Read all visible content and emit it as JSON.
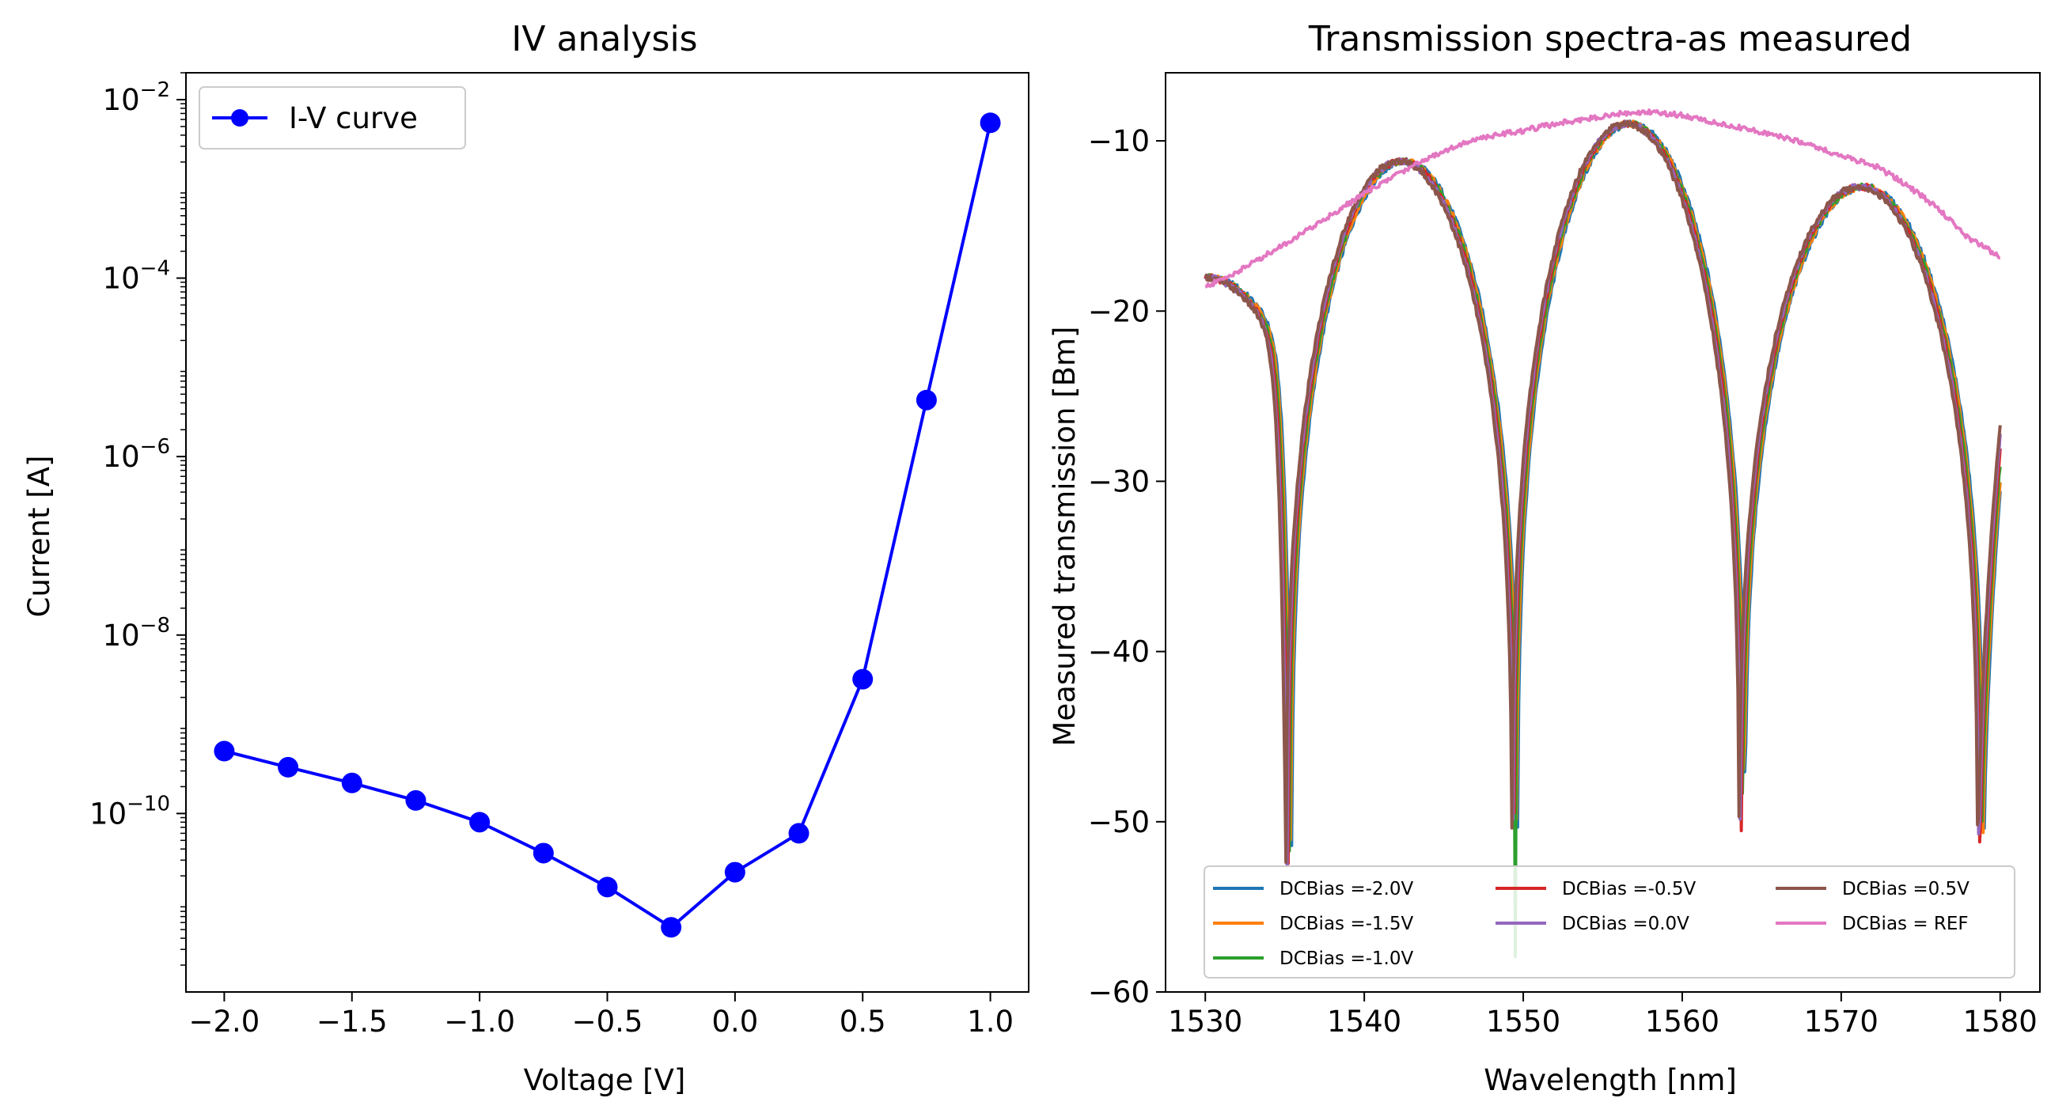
{
  "chart_data": [
    {
      "type": "line",
      "title": "IV analysis",
      "xlabel": "Voltage [V]",
      "ylabel": "Current [A]",
      "xlim": [
        -2.15,
        1.15
      ],
      "ylim": [
        1e-12,
        0.02
      ],
      "yscale": "log",
      "xticks": [
        -2.0,
        -1.5,
        -1.0,
        -0.5,
        0.0,
        0.5,
        1.0
      ],
      "xtick_labels": [
        "−2.0",
        "−1.5",
        "−1.0",
        "−0.5",
        "0.0",
        "0.5",
        "1.0"
      ],
      "yticks": [
        {
          "base": "10",
          "exp": "−10",
          "value": 1e-10
        },
        {
          "base": "10",
          "exp": "−8",
          "value": 1e-08
        },
        {
          "base": "10",
          "exp": "−6",
          "value": 1e-06
        },
        {
          "base": "10",
          "exp": "−4",
          "value": 0.0001
        },
        {
          "base": "10",
          "exp": "−2",
          "value": 0.01
        }
      ],
      "legend_location": "upper-left",
      "series": [
        {
          "name": "I-V curve",
          "color": "#0000ff",
          "marker": "circle",
          "x": [
            -2.0,
            -1.75,
            -1.5,
            -1.25,
            -1.0,
            -0.75,
            -0.5,
            -0.25,
            0.0,
            0.25,
            0.5,
            0.75,
            1.0
          ],
          "y": [
            5e-10,
            3.3e-10,
            2.2e-10,
            1.4e-10,
            8e-11,
            3.6e-11,
            1.5e-11,
            5.3e-12,
            2.2e-11,
            6e-11,
            3.2e-09,
            4.3e-06,
            0.0055
          ]
        }
      ]
    },
    {
      "type": "line",
      "title": "Transmission spectra-as measured",
      "xlabel": "Wavelength [nm]",
      "ylabel": "Measured transmission [Bm]",
      "xlim": [
        1527.5,
        1582.5
      ],
      "ylim": [
        -60,
        -6
      ],
      "xticks": [
        1530,
        1540,
        1550,
        1560,
        1570,
        1580
      ],
      "xtick_labels": [
        "1530",
        "1540",
        "1550",
        "1560",
        "1570",
        "1580"
      ],
      "yticks": [
        -60,
        -50,
        -40,
        -30,
        -20,
        -10
      ],
      "ytick_labels": [
        "−60",
        "−50",
        "−40",
        "−30",
        "−20",
        "−10"
      ],
      "legend_location": "lower-center",
      "legend_columns": 3,
      "dips_nm": [
        1535.3,
        1549.5,
        1563.8,
        1578.8
      ],
      "series": [
        {
          "name": "DCBias =-2.0V",
          "color": "#1f77b4",
          "shift_nm": 0.15,
          "x": [
            1530,
            1533,
            1535.3,
            1538,
            1543,
            1549.5,
            1553,
            1557,
            1560,
            1563.8,
            1566,
            1570,
            1574,
            1578.8,
            1580
          ],
          "y": [
            -18,
            -22,
            -50,
            -18,
            -11.2,
            -46,
            -15,
            -9,
            -14,
            -45,
            -16,
            -12.8,
            -17,
            -57,
            -31
          ]
        },
        {
          "name": "DCBias =-1.5V",
          "color": "#ff7f0e",
          "shift_nm": 0.08,
          "x": [
            1530,
            1533,
            1535.3,
            1538,
            1543,
            1549.5,
            1553,
            1557,
            1560,
            1563.8,
            1566,
            1570,
            1574,
            1578.8,
            1580
          ],
          "y": [
            -18,
            -22,
            -50,
            -18,
            -11.2,
            -46,
            -15,
            -9,
            -14,
            -46,
            -16,
            -12.8,
            -17,
            -57,
            -30
          ]
        },
        {
          "name": "DCBias =-1.0V",
          "color": "#2ca02c",
          "shift_nm": 0.0,
          "x": [
            1530,
            1533,
            1535.3,
            1538,
            1543,
            1549.5,
            1553,
            1557,
            1560,
            1563.8,
            1566,
            1570,
            1574,
            1578.8,
            1580
          ],
          "y": [
            -18,
            -22,
            -54,
            -18,
            -11.2,
            -46,
            -15,
            -9,
            -14,
            -45,
            -16,
            -12.8,
            -17,
            -57,
            -30
          ]
        },
        {
          "name": "DCBias =-0.5V",
          "color": "#d62728",
          "shift_nm": -0.08,
          "x": [
            1530,
            1533,
            1535.3,
            1538,
            1543,
            1549.5,
            1553,
            1557,
            1560,
            1563.8,
            1566,
            1570,
            1574,
            1578.8,
            1580
          ],
          "y": [
            -18,
            -22,
            -52,
            -18,
            -11.2,
            -46,
            -15,
            -9,
            -14,
            -44,
            -16,
            -12.8,
            -17,
            -56,
            -29
          ]
        },
        {
          "name": "DCBias =0.0V",
          "color": "#9467bd",
          "shift_nm": -0.15,
          "x": [
            1530,
            1533,
            1535.3,
            1538,
            1543,
            1549.5,
            1553,
            1557,
            1560,
            1563.8,
            1566,
            1570,
            1574,
            1578.8,
            1580
          ],
          "y": [
            -18,
            -22,
            -51,
            -18,
            -11.2,
            -45,
            -15,
            -9,
            -14,
            -45,
            -16,
            -12.8,
            -17,
            -55,
            -29
          ]
        },
        {
          "name": "DCBias =0.5V",
          "color": "#8c564b",
          "shift_nm": -0.22,
          "x": [
            1530,
            1533,
            1535.3,
            1538,
            1543,
            1549.5,
            1553,
            1557,
            1560,
            1563.8,
            1566,
            1570,
            1574,
            1578.8,
            1580
          ],
          "y": [
            -18,
            -22,
            -49,
            -18,
            -11.2,
            -45,
            -15,
            -9,
            -14,
            -43,
            -16,
            -12.8,
            -17,
            -54,
            -27.5
          ]
        },
        {
          "name": "DCBias = REF",
          "color": "#e377c2",
          "x": [
            1530,
            1532,
            1534,
            1536,
            1538,
            1540,
            1542,
            1544,
            1546,
            1548,
            1550,
            1552,
            1554,
            1556,
            1558,
            1560,
            1562,
            1564,
            1566,
            1568,
            1570,
            1572,
            1574,
            1576,
            1578,
            1580
          ],
          "y": [
            -18.6,
            -17.7,
            -16.6,
            -15.5,
            -14.3,
            -13.1,
            -12.0,
            -11.0,
            -10.2,
            -9.7,
            -9.4,
            -9.0,
            -8.7,
            -8.4,
            -8.3,
            -8.5,
            -8.9,
            -9.3,
            -9.7,
            -10.2,
            -10.9,
            -11.4,
            -12.5,
            -13.9,
            -15.7,
            -16.8
          ]
        }
      ]
    }
  ]
}
